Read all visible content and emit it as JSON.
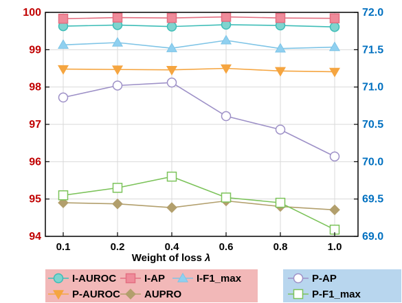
{
  "chart_data": {
    "type": "line",
    "xlabel": "Weight of loss",
    "xlabel_symbol": "λ",
    "categories": [
      "0.1",
      "0.2",
      "0.4",
      "0.6",
      "0.8",
      "1.0"
    ],
    "y_left": {
      "lim": [
        94,
        100
      ],
      "ticks": [
        "94",
        "95",
        "96",
        "97",
        "98",
        "99",
        "100"
      ],
      "color": "#c00000"
    },
    "y_right": {
      "lim": [
        69.0,
        72.0
      ],
      "ticks": [
        "69.0",
        "69.5",
        "70.0",
        "70.5",
        "71.0",
        "71.5",
        "72.0"
      ],
      "color": "#0070c0"
    },
    "grid": true,
    "series": [
      {
        "name": "I-AUROC",
        "axis": "left",
        "marker": "circle",
        "color": "#3dbdb7",
        "fill": "#7fd4cf",
        "values": [
          99.63,
          99.66,
          99.62,
          99.67,
          99.65,
          99.61
        ]
      },
      {
        "name": "I-AP",
        "axis": "left",
        "marker": "square",
        "color": "#e36f81",
        "fill": "#ef8b9a",
        "values": [
          99.83,
          99.86,
          99.85,
          99.88,
          99.85,
          99.84
        ]
      },
      {
        "name": "I-F1_max",
        "axis": "left",
        "marker": "triangle-up",
        "color": "#7ec4e6",
        "fill": "#8fd0f0",
        "values": [
          99.13,
          99.19,
          99.04,
          99.25,
          99.03,
          99.07
        ]
      },
      {
        "name": "P-AUROC",
        "axis": "left",
        "marker": "triangle-down",
        "color": "#f5a540",
        "fill": "#f5a540",
        "values": [
          98.48,
          98.47,
          98.46,
          98.5,
          98.43,
          98.41
        ]
      },
      {
        "name": "AUPRO",
        "axis": "left",
        "marker": "diamond",
        "color": "#b29f6c",
        "fill": "#b29f6c",
        "values": [
          94.9,
          94.87,
          94.77,
          94.95,
          94.8,
          94.71
        ]
      },
      {
        "name": "P-AP",
        "axis": "right",
        "marker": "circle-open",
        "color": "#9d90c7",
        "fill": "#ffffff",
        "values": [
          70.86,
          71.02,
          71.06,
          70.61,
          70.43,
          70.07
        ]
      },
      {
        "name": "P-F1_max",
        "axis": "right",
        "marker": "square-open",
        "color": "#7cc35a",
        "fill": "#ffffff",
        "values": [
          69.55,
          69.65,
          69.8,
          69.52,
          69.45,
          69.09
        ]
      }
    ],
    "legend": {
      "placement": "bottom",
      "box_left_color": "#f2b8b8",
      "box_right_color": "#b8d6ee"
    }
  }
}
